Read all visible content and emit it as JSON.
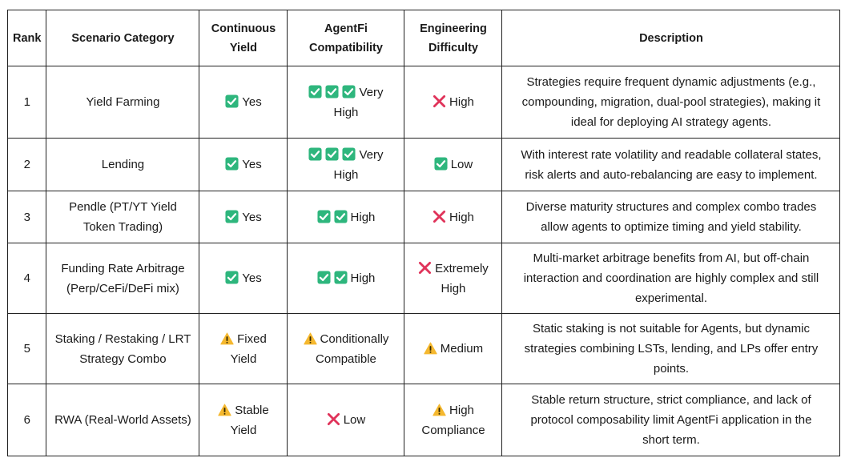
{
  "table": {
    "headers": {
      "rank": "Rank",
      "scenario": "Scenario Category",
      "yield_line1": "Continuous",
      "yield_line2": "Yield",
      "compat_line1": "AgentFi",
      "compat_line2": "Compatibility",
      "difficulty_line1": "Engineering",
      "difficulty_line2": "Difficulty",
      "description": "Description"
    },
    "rows": [
      {
        "rank": "1",
        "scenario_1": "Yield Farming",
        "scenario_2": "",
        "yield_icon": "check-icon",
        "yield_1": "Yes",
        "yield_2": "",
        "compat_icon": "check-icon",
        "compat_icon_count": 3,
        "compat_1": "Very",
        "compat_2": "High",
        "diff_icon": "cross-icon",
        "diff_1": "High",
        "diff_2": "",
        "desc_1": "Strategies require frequent dynamic adjustments (e.g.,",
        "desc_2": "compounding, migration, dual-pool strategies), making it",
        "desc_3": "ideal for deploying AI strategy agents."
      },
      {
        "rank": "2",
        "scenario_1": "Lending",
        "scenario_2": "",
        "yield_icon": "check-icon",
        "yield_1": "Yes",
        "yield_2": "",
        "compat_icon": "check-icon",
        "compat_icon_count": 3,
        "compat_1": "Very",
        "compat_2": "High",
        "diff_icon": "check-icon",
        "diff_1": "Low",
        "diff_2": "",
        "desc_1": "With interest rate volatility and readable collateral states,",
        "desc_2": "risk alerts and auto-rebalancing are easy to implement.",
        "desc_3": ""
      },
      {
        "rank": "3",
        "scenario_1": "Pendle (PT/YT Yield",
        "scenario_2": "Token Trading)",
        "yield_icon": "check-icon",
        "yield_1": "Yes",
        "yield_2": "",
        "compat_icon": "check-icon",
        "compat_icon_count": 2,
        "compat_1": "High",
        "compat_2": "",
        "diff_icon": "cross-icon",
        "diff_1": "High",
        "diff_2": "",
        "desc_1": "Diverse maturity structures and complex combo trades",
        "desc_2": "allow agents to optimize timing and yield stability.",
        "desc_3": ""
      },
      {
        "rank": "4",
        "scenario_1": "Funding Rate Arbitrage",
        "scenario_2": "(Perp/CeFi/DeFi mix)",
        "yield_icon": "check-icon",
        "yield_1": "Yes",
        "yield_2": "",
        "compat_icon": "check-icon",
        "compat_icon_count": 2,
        "compat_1": "High",
        "compat_2": "",
        "diff_icon": "cross-icon",
        "diff_1": "Extremely",
        "diff_2": "High",
        "desc_1": "Multi-market arbitrage benefits from AI, but off-chain",
        "desc_2": "interaction and coordination are highly complex and still",
        "desc_3": "experimental."
      },
      {
        "rank": "5",
        "scenario_1": "Staking / Restaking / LRT",
        "scenario_2": "Strategy Combo",
        "yield_icon": "warning-icon",
        "yield_1": "Fixed",
        "yield_2": "Yield",
        "compat_icon": "warning-icon",
        "compat_icon_count": 1,
        "compat_1": "Conditionally",
        "compat_2": "Compatible",
        "diff_icon": "warning-icon",
        "diff_1": "Medium",
        "diff_2": "",
        "desc_1": "Static staking is not suitable for Agents, but dynamic",
        "desc_2": "strategies combining LSTs, lending, and LPs offer entry",
        "desc_3": "points."
      },
      {
        "rank": "6",
        "scenario_1": "RWA (Real-World Assets)",
        "scenario_2": "",
        "yield_icon": "warning-icon",
        "yield_1": "Stable",
        "yield_2": "Yield",
        "compat_icon": "cross-icon",
        "compat_icon_count": 1,
        "compat_1": "Low",
        "compat_2": "",
        "diff_icon": "warning-icon",
        "diff_1": "High",
        "diff_2": "Compliance",
        "desc_1": "Stable return structure, strict compliance, and lack of",
        "desc_2": "protocol composability limit AgentFi application in the",
        "desc_3": "short term."
      }
    ],
    "colors": {
      "check_green": "#2eb67d",
      "cross_red": "#e0335a",
      "warning_yellow": "#f5b82e",
      "border": "#222222"
    }
  }
}
